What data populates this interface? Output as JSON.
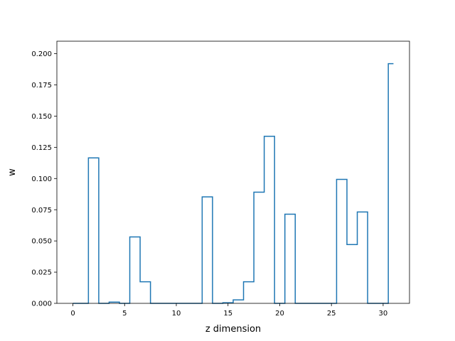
{
  "chart_data": {
    "type": "step",
    "title": "",
    "xlabel": "z dimension",
    "ylabel": "w",
    "xlim": [
      -1.55,
      32.55
    ],
    "ylim": [
      0,
      0.21
    ],
    "xticks": [
      0,
      5,
      10,
      15,
      20,
      25,
      30
    ],
    "yticks": [
      "0.000",
      "0.025",
      "0.050",
      "0.075",
      "0.100",
      "0.125",
      "0.150",
      "0.175",
      "0.200"
    ],
    "grid": false,
    "color": "#1f77b4",
    "series": [
      {
        "x": [
          0,
          1,
          2,
          3,
          4,
          5,
          6,
          7,
          8,
          9,
          10,
          11,
          12,
          13,
          14,
          15,
          16,
          17,
          18,
          19,
          20,
          21,
          22,
          23,
          24,
          25,
          26,
          27,
          28,
          29,
          30,
          31
        ],
        "values": [
          0.0,
          0.0,
          0.1165,
          0.0,
          0.001,
          0.0,
          0.0532,
          0.0173,
          0.0,
          0.0,
          0.0,
          0.0,
          0.0,
          0.0853,
          0.0,
          0.0005,
          0.0028,
          0.0173,
          0.0891,
          0.1338,
          0.0,
          0.0714,
          0.0,
          0.0,
          0.0,
          0.0,
          0.0993,
          0.0471,
          0.0732,
          0.0,
          0.0,
          0.192
        ]
      }
    ]
  }
}
